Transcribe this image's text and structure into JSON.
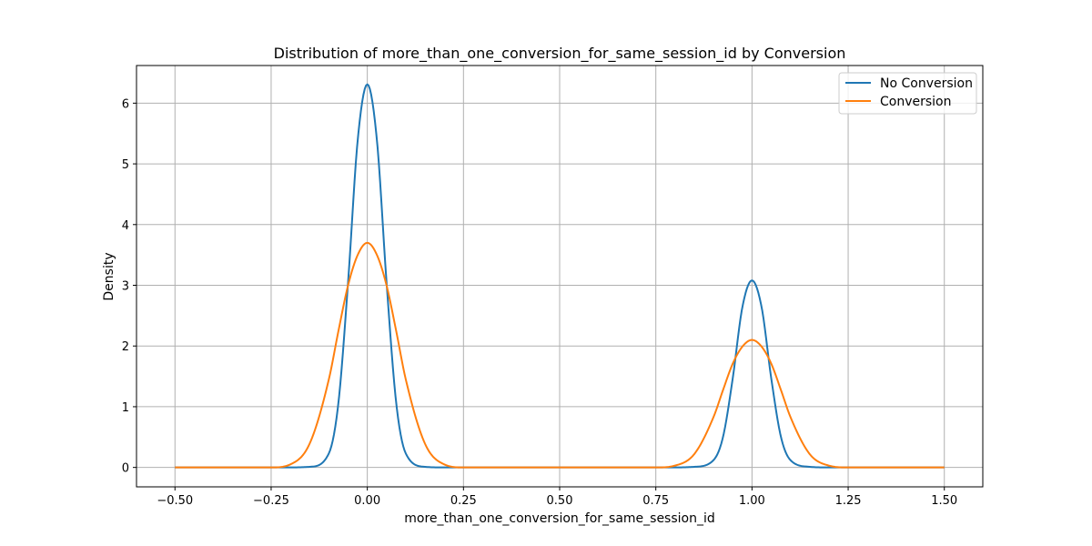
{
  "chart_data": {
    "type": "line",
    "title": "Distribution of more_than_one_conversion_for_same_session_id by Conversion",
    "xlabel": "more_than_one_conversion_for_same_session_id",
    "ylabel": "Density",
    "xlim": [
      -0.6,
      1.6
    ],
    "ylim": [
      -0.32,
      6.62
    ],
    "xticks": [
      -0.5,
      -0.25,
      0.0,
      0.25,
      0.5,
      0.75,
      1.0,
      1.25,
      1.5
    ],
    "xtick_labels": [
      "−0.50",
      "−0.25",
      "0.00",
      "0.25",
      "0.50",
      "0.75",
      "1.00",
      "1.25",
      "1.50"
    ],
    "yticks": [
      0,
      1,
      2,
      3,
      4,
      5,
      6
    ],
    "ytick_labels": [
      "0",
      "1",
      "2",
      "3",
      "4",
      "5",
      "6"
    ],
    "grid": true,
    "legend_position": "top-right",
    "series": [
      {
        "name": "No Conversion",
        "color": "#1f77b4",
        "x": [
          -0.5,
          -0.2,
          -0.15,
          -0.1,
          -0.075,
          -0.05,
          -0.025,
          0.0,
          0.025,
          0.05,
          0.075,
          0.1,
          0.15,
          0.2,
          0.8,
          0.85,
          0.9,
          0.925,
          0.95,
          0.975,
          1.0,
          1.025,
          1.05,
          1.075,
          1.1,
          1.15,
          1.2,
          1.5
        ],
        "values": [
          0,
          0.0,
          0.01,
          0.23,
          1.07,
          3.05,
          5.39,
          6.31,
          5.39,
          3.05,
          1.07,
          0.23,
          0.01,
          0.0,
          0.0,
          0.01,
          0.12,
          0.51,
          1.47,
          2.64,
          3.08,
          2.64,
          1.47,
          0.51,
          0.12,
          0.01,
          0.0,
          0
        ]
      },
      {
        "name": "Conversion",
        "color": "#ff7f0e",
        "x": [
          -0.5,
          -0.3,
          -0.25,
          -0.2,
          -0.15,
          -0.1,
          -0.075,
          -0.05,
          -0.025,
          0.0,
          0.025,
          0.05,
          0.075,
          0.1,
          0.15,
          0.2,
          0.25,
          0.3,
          0.7,
          0.75,
          0.8,
          0.85,
          0.9,
          0.925,
          0.95,
          0.975,
          1.0,
          1.025,
          1.05,
          1.075,
          1.1,
          1.15,
          1.2,
          1.25,
          1.3,
          1.5
        ],
        "values": [
          0,
          0.0,
          0.0,
          0.05,
          0.39,
          1.45,
          2.25,
          3.0,
          3.5,
          3.7,
          3.5,
          3.0,
          2.25,
          1.45,
          0.39,
          0.05,
          0.0,
          0.0,
          0.0,
          0.0,
          0.03,
          0.22,
          0.83,
          1.28,
          1.71,
          1.99,
          2.1,
          1.99,
          1.71,
          1.28,
          0.83,
          0.22,
          0.03,
          0.0,
          0.0,
          0
        ]
      }
    ]
  }
}
